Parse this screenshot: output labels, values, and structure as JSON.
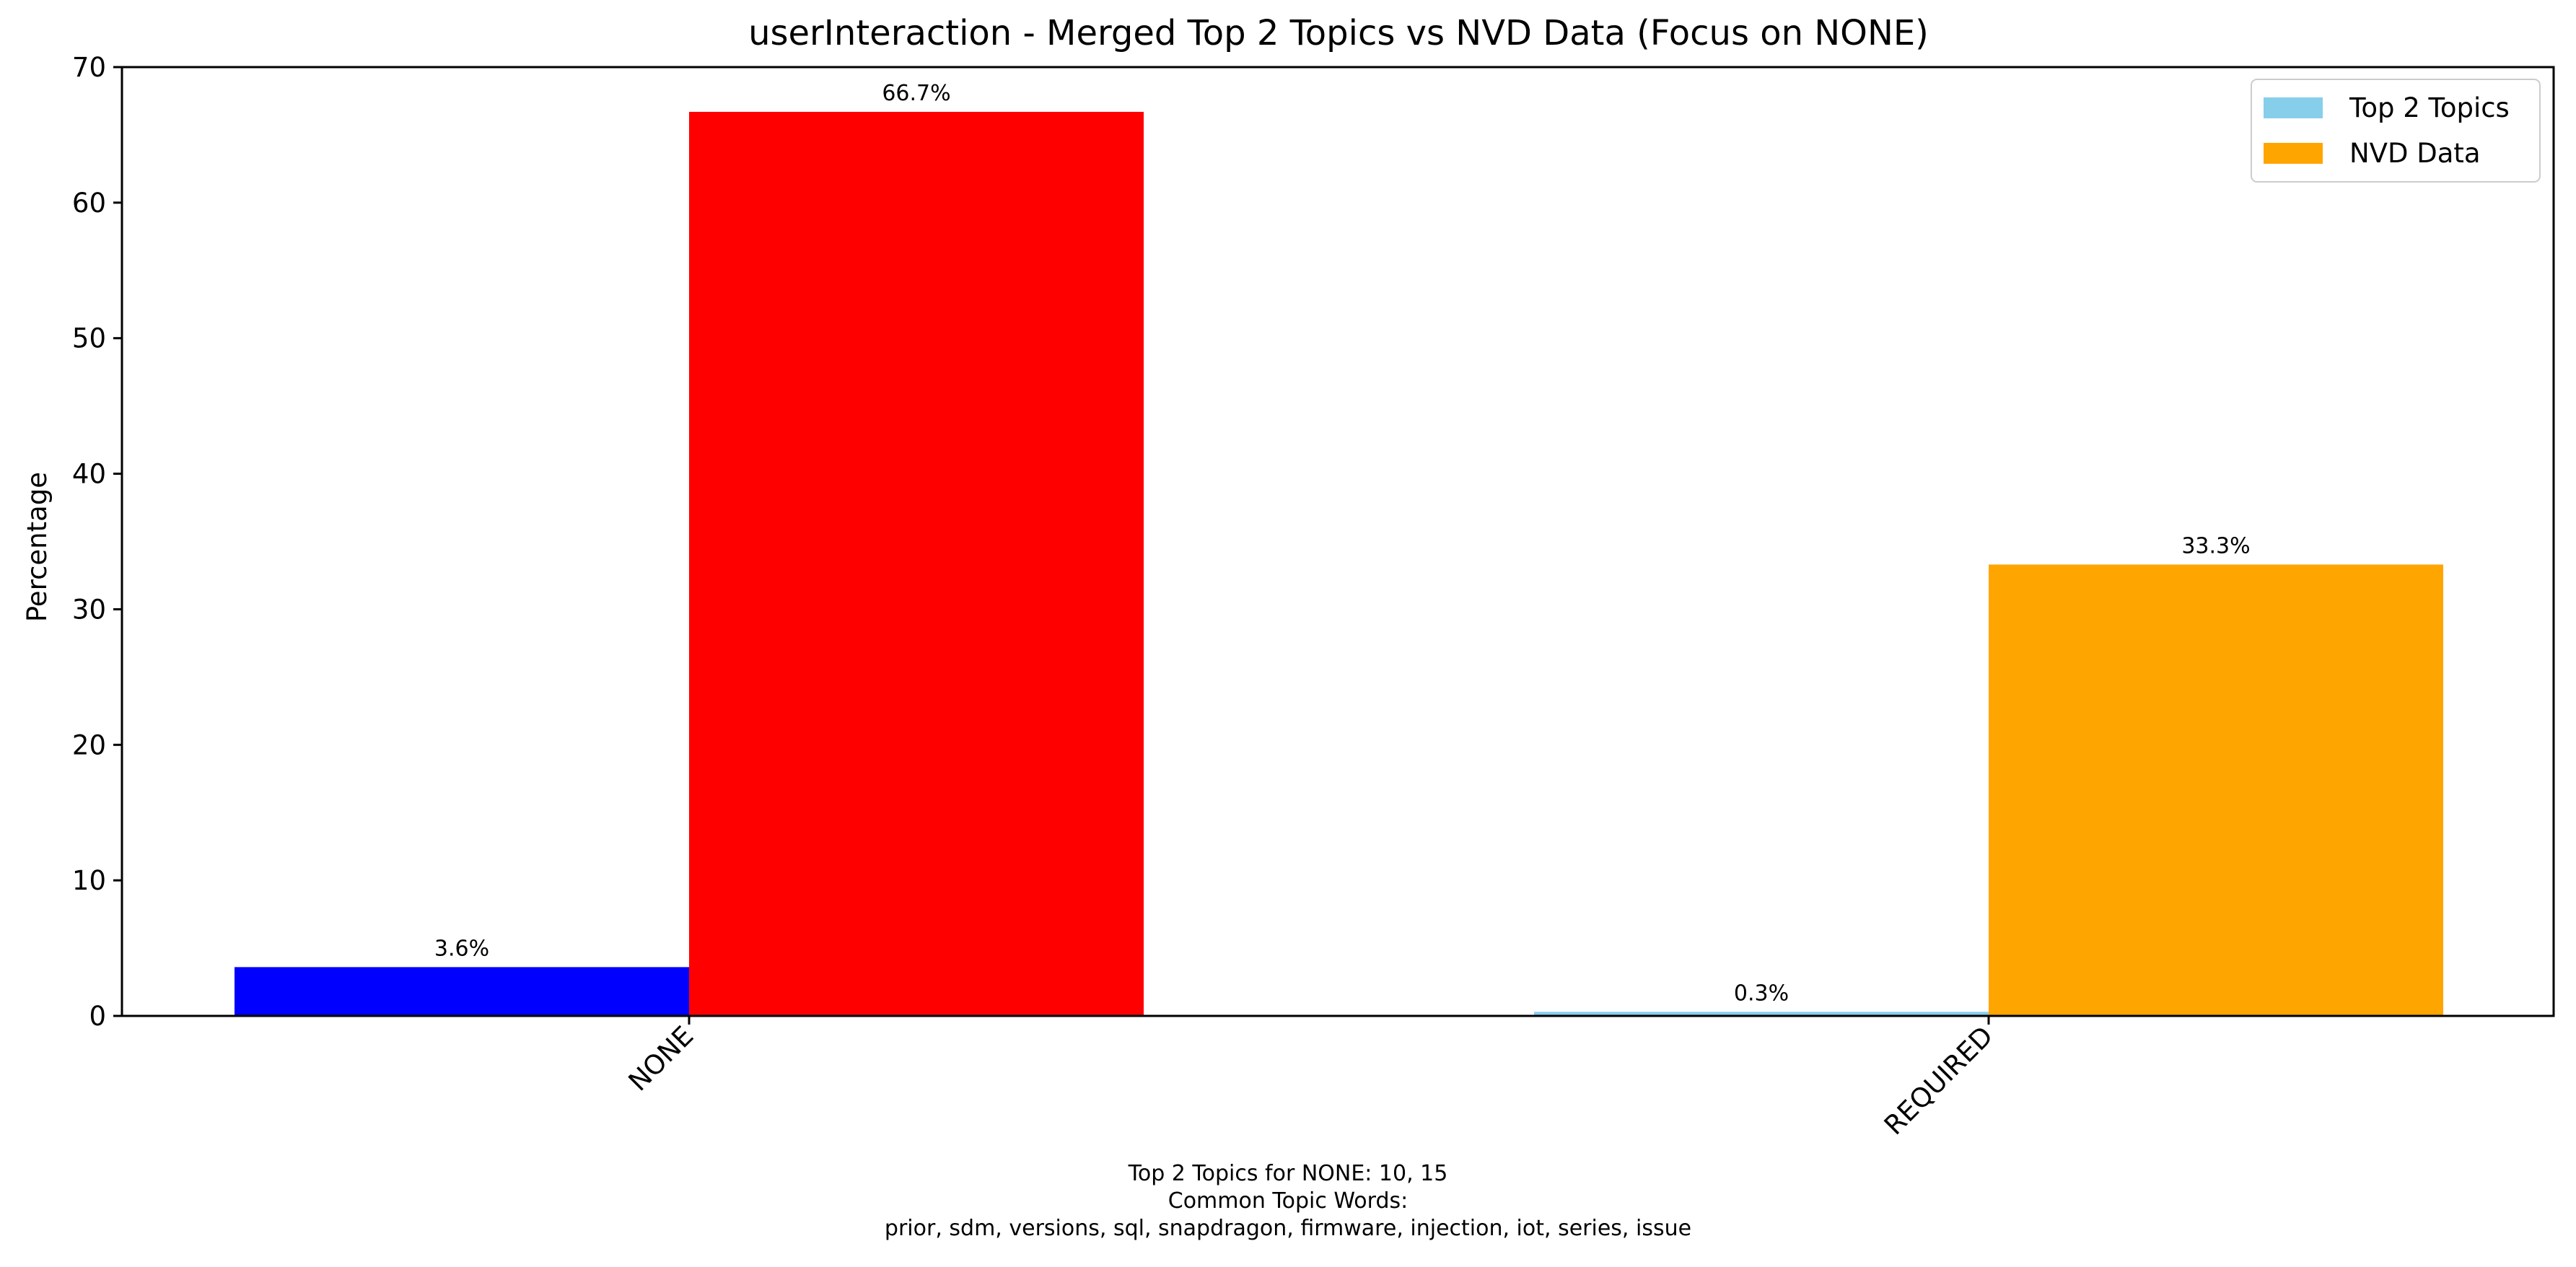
{
  "chart_data": {
    "type": "bar",
    "title": "userInteraction - Merged Top 2 Topics vs NVD Data (Focus on NONE)",
    "ylabel": "Percentage",
    "xlabel": "",
    "categories": [
      "NONE",
      "REQUIRED"
    ],
    "ylim": [
      0,
      70
    ],
    "yticks": [
      0,
      10,
      20,
      30,
      40,
      50,
      60,
      70
    ],
    "grid": false,
    "legend_position": "top-right",
    "series": [
      {
        "name": "Top 2 Topics",
        "values": [
          3.6,
          0.3
        ],
        "labels": [
          "3.6%",
          "0.3%"
        ],
        "legend_color": "#87ceeb",
        "bar_colors": [
          "#0000ff",
          "#87ceeb"
        ]
      },
      {
        "name": "NVD Data",
        "values": [
          66.7,
          33.3
        ],
        "labels": [
          "66.7%",
          "33.3%"
        ],
        "legend_color": "#ffa500",
        "bar_colors": [
          "#ff0000",
          "#ffa500"
        ]
      }
    ]
  },
  "footnote": {
    "line1": "Top 2 Topics for NONE: 10, 15",
    "line2": "Common Topic Words:",
    "line3": "prior,  sdm,  versions,  sql,  snapdragon,  firmware,  injection,  iot,  series,  issue"
  }
}
